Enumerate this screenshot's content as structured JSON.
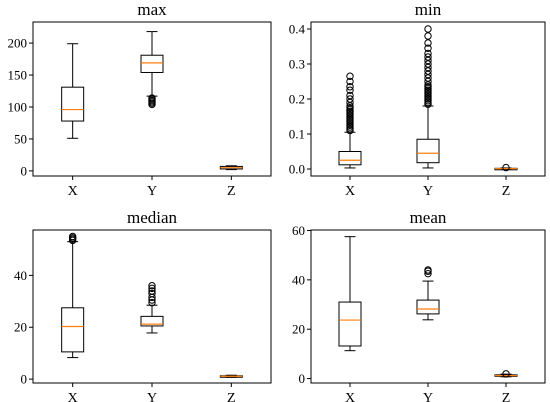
{
  "chart_data": [
    {
      "type": "box",
      "title": "max",
      "categories": [
        "X",
        "Y",
        "Z"
      ],
      "ylim": [
        -8,
        233
      ],
      "yticks": [
        0,
        50,
        100,
        150,
        200
      ],
      "ytick_labels": [
        "0",
        "50",
        "100",
        "150",
        "200"
      ],
      "grid": false,
      "boxes": [
        {
          "name": "X",
          "whisker_low": 51,
          "q1": 78,
          "median": 96,
          "q3": 131,
          "whisker_high": 199,
          "outliers": []
        },
        {
          "name": "Y",
          "whisker_low": 117,
          "q1": 154,
          "median": 169,
          "q3": 181,
          "whisker_high": 218,
          "outliers": [
            104,
            106,
            108,
            110,
            112,
            114
          ]
        },
        {
          "name": "Z",
          "whisker_low": 2,
          "q1": 3,
          "median": 5,
          "q3": 7,
          "whisker_high": 8,
          "outliers": []
        }
      ]
    },
    {
      "type": "box",
      "title": "min",
      "categories": [
        "X",
        "Y",
        "Z"
      ],
      "ylim": [
        -0.02,
        0.42
      ],
      "yticks": [
        0.0,
        0.1,
        0.2,
        0.3,
        0.4
      ],
      "ytick_labels": [
        "0.0",
        "0.1",
        "0.2",
        "0.3",
        "0.4"
      ],
      "grid": false,
      "boxes": [
        {
          "name": "X",
          "whisker_low": 0.003,
          "q1": 0.012,
          "median": 0.025,
          "q3": 0.05,
          "whisker_high": 0.105,
          "outliers": [
            0.11,
            0.115,
            0.12,
            0.125,
            0.13,
            0.135,
            0.14,
            0.145,
            0.15,
            0.155,
            0.16,
            0.165,
            0.17,
            0.175,
            0.18,
            0.19,
            0.2,
            0.21,
            0.225,
            0.235,
            0.25,
            0.265
          ]
        },
        {
          "name": "Y",
          "whisker_low": 0.003,
          "q1": 0.018,
          "median": 0.045,
          "q3": 0.085,
          "whisker_high": 0.18,
          "outliers": [
            0.185,
            0.19,
            0.195,
            0.2,
            0.205,
            0.21,
            0.215,
            0.22,
            0.225,
            0.23,
            0.235,
            0.24,
            0.25,
            0.26,
            0.27,
            0.28,
            0.29,
            0.3,
            0.31,
            0.32,
            0.33,
            0.345,
            0.36,
            0.38,
            0.4
          ]
        },
        {
          "name": "Z",
          "whisker_low": 0.0,
          "q1": 0.0,
          "median": 0.001,
          "q3": 0.002,
          "whisker_high": 0.003,
          "outliers": [
            0.004
          ]
        }
      ]
    },
    {
      "type": "box",
      "title": "median",
      "categories": [
        "X",
        "Y",
        "Z"
      ],
      "ylim": [
        -1.5,
        57.5
      ],
      "yticks": [
        0,
        20,
        40
      ],
      "ytick_labels": [
        "0",
        "20",
        "40"
      ],
      "grid": false,
      "boxes": [
        {
          "name": "X",
          "whisker_low": 8.3,
          "q1": 10.5,
          "median": 20.3,
          "q3": 27.5,
          "whisker_high": 53,
          "outliers": [
            53.5,
            54,
            54.5,
            55
          ]
        },
        {
          "name": "Y",
          "whisker_low": 17.8,
          "q1": 20.5,
          "median": 21.2,
          "q3": 24.2,
          "whisker_high": 28.5,
          "outliers": [
            29.5,
            30.5,
            31.5,
            33,
            34,
            35,
            36
          ]
        },
        {
          "name": "Z",
          "whisker_low": 0.7,
          "q1": 0.9,
          "median": 1.1,
          "q3": 1.3,
          "whisker_high": 1.5,
          "outliers": []
        }
      ]
    },
    {
      "type": "box",
      "title": "mean",
      "categories": [
        "X",
        "Y",
        "Z"
      ],
      "ylim": [
        -1.8,
        60.2
      ],
      "yticks": [
        0,
        20,
        40,
        60
      ],
      "ytick_labels": [
        "0",
        "20",
        "40",
        "60"
      ],
      "grid": false,
      "boxes": [
        {
          "name": "X",
          "whisker_low": 11.3,
          "q1": 13.2,
          "median": 23.7,
          "q3": 31,
          "whisker_high": 57.5,
          "outliers": []
        },
        {
          "name": "Y",
          "whisker_low": 23.8,
          "q1": 26.2,
          "median": 28.2,
          "q3": 31.8,
          "whisker_high": 39.5,
          "outliers": [
            42.5,
            43.5,
            44
          ]
        },
        {
          "name": "Z",
          "whisker_low": 0.7,
          "q1": 0.9,
          "median": 1.2,
          "q3": 1.5,
          "whisker_high": 1.8,
          "outliers": [
            1.9
          ]
        }
      ]
    }
  ]
}
